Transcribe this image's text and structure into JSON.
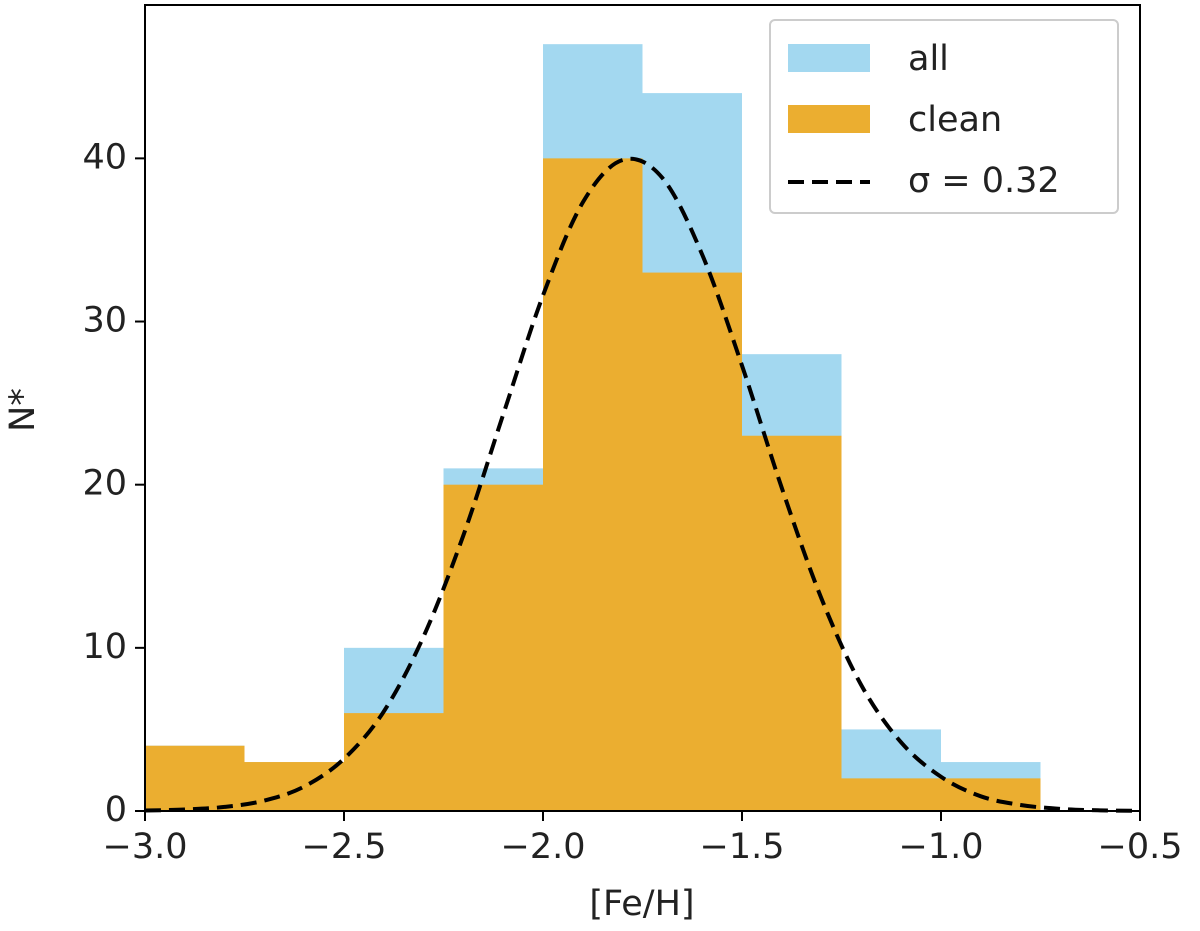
{
  "chart_data": {
    "type": "histogram",
    "xlabel": "[Fe/H]",
    "ylabel": "N*",
    "bins": [
      -3.0,
      -2.75,
      -2.5,
      -2.25,
      -2.0,
      -1.75,
      -1.5,
      -1.25,
      -1.0,
      -0.75
    ],
    "series": [
      {
        "name": "all",
        "color": "#a3d8f0",
        "values": [
          4,
          3,
          10,
          21,
          47,
          44,
          28,
          5,
          3
        ]
      },
      {
        "name": "clean",
        "color": "#ebae30",
        "values": [
          4,
          3,
          6,
          20,
          40,
          33,
          23,
          2,
          2
        ]
      },
      {
        "name": "σ = 0.32",
        "type": "line",
        "style": "dashed",
        "color": "#000000",
        "x": [
          -3.0,
          -2.9,
          -2.8,
          -2.7,
          -2.6,
          -2.5,
          -2.4,
          -2.3,
          -2.2,
          -2.1,
          -2.0,
          -1.9,
          -1.8,
          -1.7,
          -1.6,
          -1.5,
          -1.4,
          -1.3,
          -1.2,
          -1.1,
          -1.0,
          -0.9,
          -0.8,
          -0.7,
          -0.6,
          -0.5
        ],
        "values": [
          0.03,
          0.09,
          0.25,
          0.64,
          1.5,
          3.2,
          6.1,
          10.7,
          16.9,
          24.3,
          31.6,
          37.3,
          39.9,
          38.8,
          34.1,
          27.3,
          19.8,
          13.0,
          7.7,
          4.2,
          2.1,
          0.9,
          0.37,
          0.13,
          0.04,
          0.01
        ]
      }
    ],
    "xlim": [
      -3.0,
      -0.5
    ],
    "ylim": [
      0,
      49.4
    ],
    "xticks": [
      {
        "value": -3.0,
        "label": "−3.0"
      },
      {
        "value": -2.5,
        "label": "−2.5"
      },
      {
        "value": -2.0,
        "label": "−2.0"
      },
      {
        "value": -1.5,
        "label": "−1.5"
      },
      {
        "value": -1.0,
        "label": "−1.0"
      },
      {
        "value": -0.5,
        "label": "−0.5"
      }
    ],
    "yticks": [
      0,
      10,
      20,
      30,
      40
    ],
    "grid": false,
    "legend": "upper right"
  }
}
